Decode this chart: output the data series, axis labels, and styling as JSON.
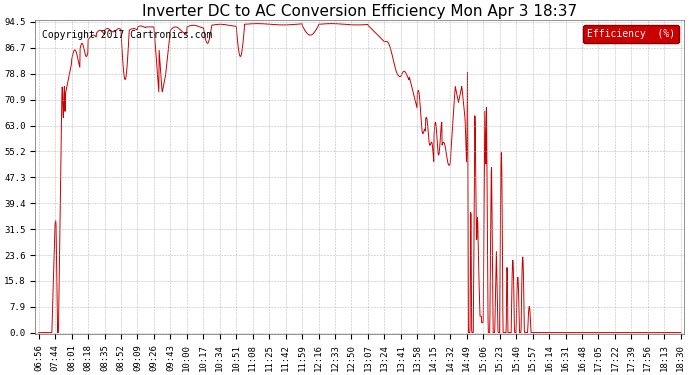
{
  "title": "Inverter DC to AC Conversion Efficiency Mon Apr 3 18:37",
  "copyright": "Copyright 2017 Cartronics.com",
  "legend_label": "Efficiency  (%)",
  "legend_bg": "#cc0000",
  "legend_text_color": "#ffffff",
  "line_color": "#cc0000",
  "bg_color": "#ffffff",
  "plot_bg_color": "#ffffff",
  "grid_color": "#aaaaaa",
  "yticks": [
    0.0,
    7.9,
    15.8,
    23.6,
    31.5,
    39.4,
    47.3,
    55.2,
    63.0,
    70.9,
    78.8,
    86.7,
    94.5
  ],
  "xtick_labels": [
    "06:56",
    "07:44",
    "08:01",
    "08:18",
    "08:35",
    "08:52",
    "09:09",
    "09:26",
    "09:43",
    "10:00",
    "10:17",
    "10:34",
    "10:51",
    "11:08",
    "11:25",
    "11:42",
    "11:59",
    "12:16",
    "12:33",
    "12:50",
    "13:07",
    "13:24",
    "13:41",
    "13:58",
    "14:15",
    "14:32",
    "14:49",
    "15:06",
    "15:23",
    "15:40",
    "15:57",
    "16:14",
    "16:31",
    "16:48",
    "17:05",
    "17:22",
    "17:39",
    "17:56",
    "18:13",
    "18:30"
  ],
  "ymin": 0.0,
  "ymax": 94.5,
  "title_fontsize": 11,
  "copyright_fontsize": 7,
  "tick_fontsize": 6.5
}
